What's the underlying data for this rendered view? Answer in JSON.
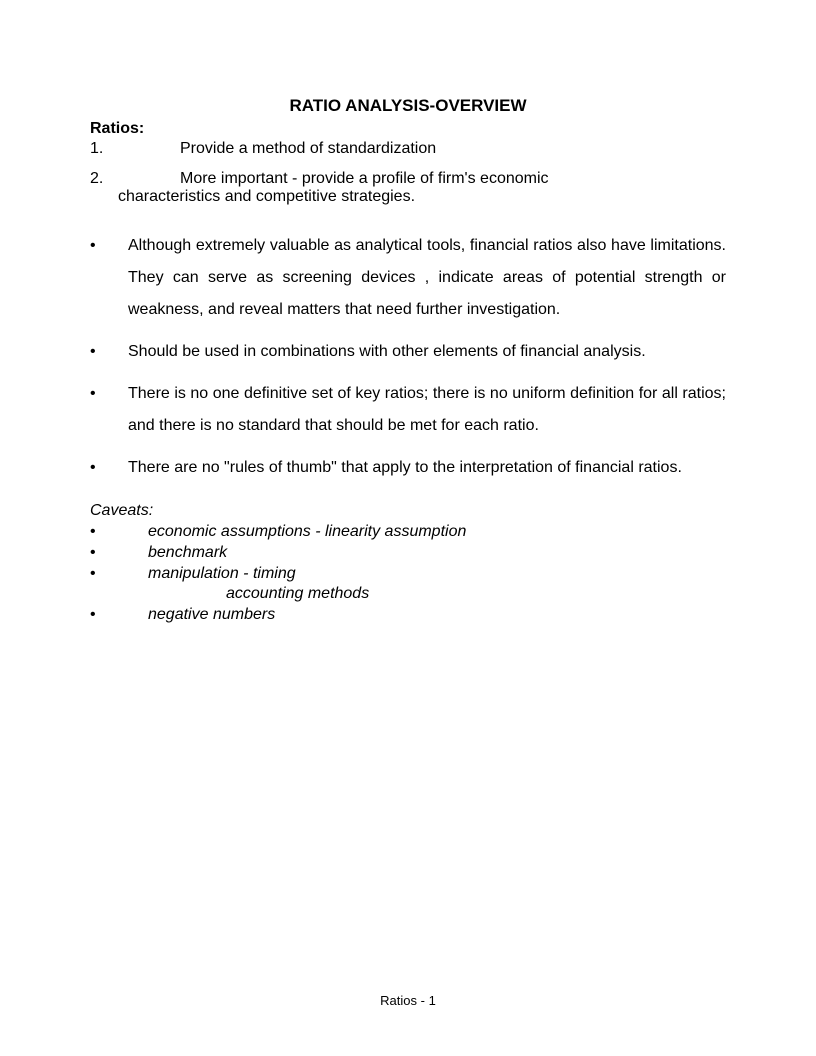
{
  "title": "RATIO ANALYSIS-OVERVIEW",
  "section1_heading": "Ratios:",
  "numbered": [
    {
      "num": "1.",
      "text": "Provide a method of standardization"
    },
    {
      "num": "2.",
      "text_line1": "More important - provide a profile of firm's economic",
      "text_line2": "characteristics and competitive strategies."
    }
  ],
  "bullets": [
    "Although extremely valuable as analytical tools, financial ratios also have limitations.   They can serve as screening devices , indicate areas of potential strength or weakness, and reveal matters that need further investigation.",
    "Should be used in combinations with other elements of financial analysis.",
    "There is no one definitive set of key ratios; there is no uniform definition for all ratios; and there is no standard that should be met for each ratio.",
    "There are no \"rules of thumb\" that apply to the interpretation of financial ratios."
  ],
  "caveats_heading": "Caveats:",
  "caveats": [
    "economic assumptions - linearity assumption",
    "benchmark",
    "manipulation - timing",
    "negative numbers"
  ],
  "caveats_sub": "accounting methods",
  "footer": "Ratios - 1",
  "colors": {
    "background": "#ffffff",
    "text": "#000000"
  },
  "typography": {
    "title_fontsize": 17,
    "body_fontsize": 16,
    "footer_fontsize": 13,
    "font_family": "Arial"
  }
}
